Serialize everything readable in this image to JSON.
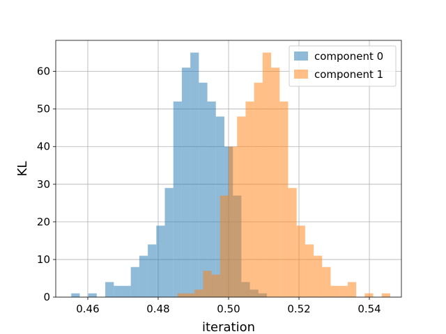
{
  "chart_data": {
    "type": "bar",
    "subtype": "histogram",
    "xlabel": "iteration",
    "ylabel": "KL",
    "xlim": [
      0.4509,
      0.5491
    ],
    "ylim": [
      0,
      68.25
    ],
    "xticks": [
      0.46,
      0.48,
      0.5,
      0.52,
      0.54
    ],
    "xtick_labels": [
      "0.46",
      "0.48",
      "0.50",
      "0.52",
      "0.54"
    ],
    "yticks": [
      0,
      10,
      20,
      30,
      40,
      50,
      60
    ],
    "ytick_labels": [
      "0",
      "10",
      "20",
      "30",
      "40",
      "50",
      "60"
    ],
    "grid": true,
    "legend_position": "top-right",
    "alpha": 0.5,
    "series": [
      {
        "name": "component 0",
        "color": "#1f77b4",
        "bin_start": 0.4553,
        "bin_width": 0.002417,
        "counts": [
          1,
          0,
          1,
          0,
          4,
          3,
          3,
          8,
          11,
          14,
          19,
          29,
          52,
          61,
          65,
          57,
          52,
          48,
          40,
          27,
          4,
          2,
          1
        ]
      },
      {
        "name": "component 1",
        "color": "#ff7f0e",
        "bin_start": 0.4855,
        "bin_width": 0.002417,
        "counts": [
          1,
          1,
          2,
          7,
          6,
          27,
          40,
          48,
          52,
          57,
          65,
          61,
          52,
          29,
          19,
          14,
          11,
          8,
          3,
          3,
          4,
          0,
          1,
          0,
          1
        ]
      }
    ]
  }
}
